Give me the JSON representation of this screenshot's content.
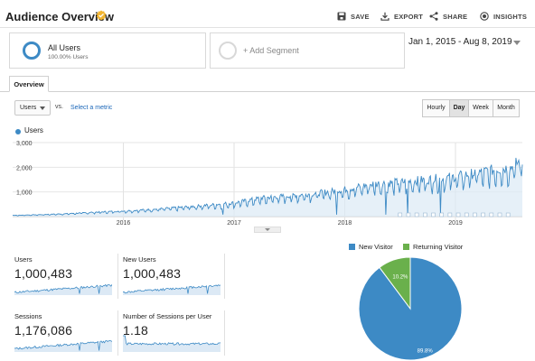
{
  "header": {
    "title": "Audience Overview",
    "actions": [
      {
        "label": "SAVE",
        "icon": "save-icon"
      },
      {
        "label": "EXPORT",
        "icon": "export-icon"
      },
      {
        "label": "SHARE",
        "icon": "share-icon"
      },
      {
        "label": "INSIGHTS",
        "icon": "insights-icon"
      }
    ]
  },
  "segments": {
    "primary": {
      "name": "All Users",
      "percent": "100.00% Users"
    },
    "add": {
      "label": "+ Add Segment"
    }
  },
  "date_range": "Jan 1, 2015 - Aug 8, 2019",
  "tabs": [
    {
      "label": "Overview"
    }
  ],
  "metric_selector": {
    "selected": "Users",
    "vs_label": "vs.",
    "select_metric_label": "Select a metric"
  },
  "granularity": [
    {
      "label": "Hourly",
      "active": false
    },
    {
      "label": "Day",
      "active": true
    },
    {
      "label": "Week",
      "active": false
    },
    {
      "label": "Month",
      "active": false
    }
  ],
  "chart_data": {
    "type": "line",
    "series": [
      {
        "name": "Users",
        "color": "#3d8ac5"
      }
    ],
    "y_ticks": [
      "3,000",
      "2,000",
      "1,000"
    ],
    "x_ticks": [
      "2016",
      "2017",
      "2018",
      "2019"
    ],
    "ylim": [
      0,
      3000
    ],
    "grid": true,
    "x": [
      "2015-01",
      "2015-04",
      "2015-07",
      "2015-10",
      "2016-01",
      "2016-04",
      "2016-07",
      "2016-10",
      "2017-01",
      "2017-04",
      "2017-07",
      "2017-10",
      "2018-01",
      "2018-04",
      "2018-07",
      "2018-10",
      "2019-01",
      "2019-04",
      "2019-07",
      "2019-08"
    ],
    "values": [
      50,
      80,
      120,
      180,
      230,
      290,
      370,
      460,
      560,
      760,
      850,
      950,
      1100,
      1320,
      1400,
      1500,
      1620,
      1820,
      2000,
      2250
    ]
  },
  "scorecards": [
    {
      "label": "Users",
      "value": "1,000,483"
    },
    {
      "label": "New Users",
      "value": "1,000,483"
    },
    {
      "label": "Sessions",
      "value": "1,176,086"
    },
    {
      "label": "Number of Sessions per User",
      "value": "1.18"
    }
  ],
  "pie": {
    "legend": [
      {
        "label": "New Visitor",
        "color": "#3d8ac5"
      },
      {
        "label": "Returning Visitor",
        "color": "#6ab04c"
      }
    ],
    "slices": [
      {
        "label": "89.8%",
        "value": 89.8,
        "color": "#3d8ac5"
      },
      {
        "label": "10.2%",
        "value": 10.2,
        "color": "#6ab04c"
      }
    ]
  }
}
